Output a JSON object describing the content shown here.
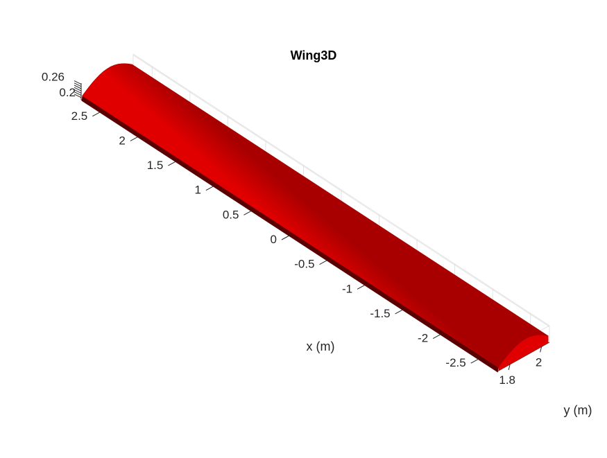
{
  "chart_data": {
    "type": "surface",
    "title": "Wing3D",
    "xlabel": "x (m)",
    "ylabel": "y (m)",
    "zlabel": "",
    "x_ticks": [
      "-2.5",
      "-2",
      "-1.5",
      "-1",
      "-0.5",
      "0",
      "0.5",
      "1",
      "1.5",
      "2",
      "2.5"
    ],
    "y_ticks": [
      "1.8",
      "2"
    ],
    "z_ticks": [
      "0.2",
      "0.26"
    ],
    "xlim": [
      -2.75,
      2.75
    ],
    "ylim": [
      1.72,
      2.05
    ],
    "zlim": [
      0.19,
      0.265
    ],
    "grid": true,
    "surface_color": "#e00000",
    "surface_shadow_color": "#a80000"
  }
}
